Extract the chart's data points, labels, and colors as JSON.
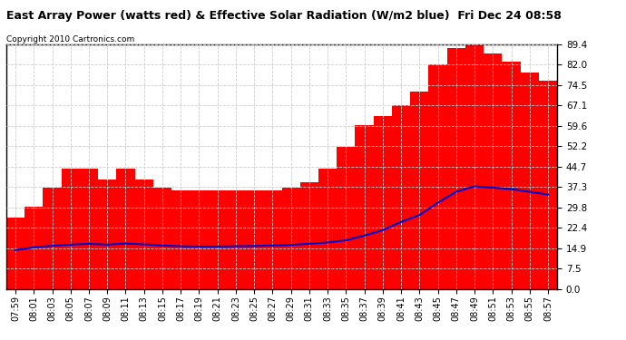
{
  "title": "East Array Power (watts red) & Effective Solar Radiation (W/m2 blue)  Fri Dec 24 08:58",
  "copyright": "Copyright 2010 Cartronics.com",
  "background_color": "#ffffff",
  "plot_bg_color": "#ffffff",
  "grid_color": "#cccccc",
  "time_labels": [
    "07:59",
    "08:01",
    "08:03",
    "08:05",
    "08:07",
    "08:09",
    "08:11",
    "08:13",
    "08:15",
    "08:17",
    "08:19",
    "08:21",
    "08:23",
    "08:25",
    "08:27",
    "08:29",
    "08:31",
    "08:33",
    "08:35",
    "08:37",
    "08:39",
    "08:41",
    "08:43",
    "08:45",
    "08:47",
    "08:49",
    "08:51",
    "08:53",
    "08:55",
    "08:57"
  ],
  "yticks": [
    0.0,
    7.5,
    14.9,
    22.4,
    29.8,
    37.3,
    44.7,
    52.2,
    59.6,
    67.1,
    74.5,
    82.0,
    89.4
  ],
  "ymax": 89.4,
  "ymin": 0.0,
  "red_values": [
    26,
    30,
    37,
    44,
    44,
    40,
    44,
    40,
    37,
    36,
    36,
    36,
    36,
    36,
    36,
    37,
    39,
    44,
    52,
    60,
    63,
    67,
    72,
    82,
    88,
    89,
    86,
    83,
    79,
    76
  ],
  "blue_values": [
    14.2,
    15.2,
    15.8,
    16.2,
    16.5,
    16.2,
    16.6,
    16.3,
    15.9,
    15.6,
    15.5,
    15.5,
    15.6,
    15.7,
    15.9,
    16.1,
    16.5,
    17.0,
    17.8,
    19.5,
    21.5,
    24.5,
    27.0,
    31.5,
    35.5,
    37.5,
    37.0,
    36.5,
    35.5,
    34.5
  ],
  "red_color": "#ff0000",
  "blue_color": "#0000cc",
  "bar_width": 1.0,
  "title_fontsize": 9,
  "copyright_fontsize": 6.5,
  "ytick_fontsize": 7.5,
  "xtick_fontsize": 7.0
}
